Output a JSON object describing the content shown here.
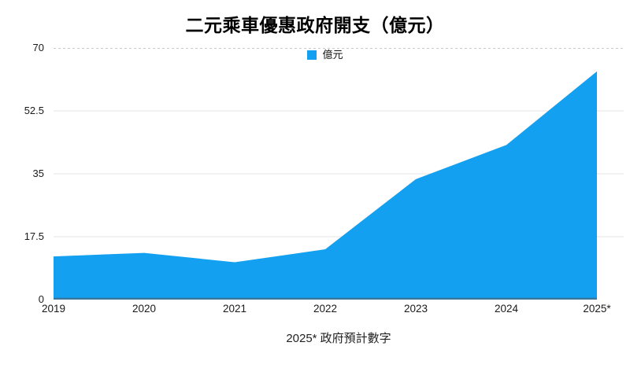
{
  "title": "二元乘車優惠政府開支（億元）",
  "caption": "2025* 政府預計數字",
  "legend": {
    "label": "億元",
    "swatch_color": "#14A0F0"
  },
  "chart_data": {
    "type": "area",
    "title": "二元乘車優惠政府開支（億元）",
    "x": [
      "2019",
      "2020",
      "2021",
      "2022",
      "2023",
      "2024",
      "2025*"
    ],
    "series": [
      {
        "name": "億元",
        "values": [
          12,
          13,
          10.4,
          14,
          33.5,
          43,
          63.5
        ]
      }
    ],
    "xlabel": "",
    "ylabel": "",
    "ylim": [
      0,
      70
    ],
    "yticks": [
      0,
      17.5,
      35,
      52.5,
      70
    ],
    "grid": true,
    "legend_position": "top-center",
    "footnote": "2025* 政府預計數字",
    "colors": {
      "area_fill": "#14A0F0",
      "baseline": "#3A78A0",
      "gridline": "#e4e4e4",
      "top_gridline": "#c9c9c9"
    }
  }
}
